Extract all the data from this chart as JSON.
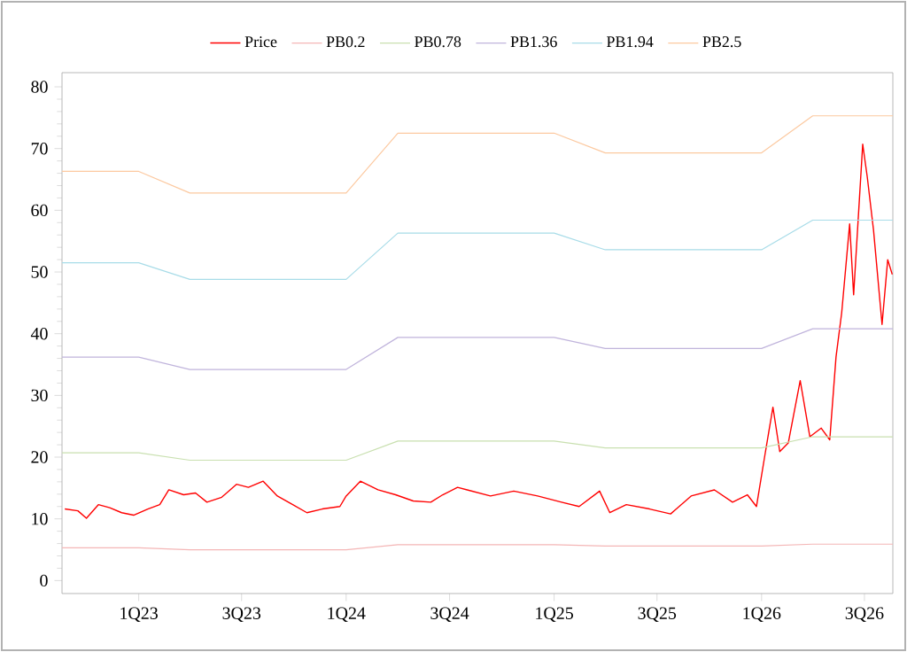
{
  "chart_data": {
    "type": "line",
    "legend": "top",
    "grid": false,
    "marker": "none",
    "line_style": "solid",
    "xlim": [
      "2022-08-19",
      "2026-08-20"
    ],
    "ylim": [
      -2.1,
      82.3
    ],
    "xticks": [
      {
        "value": "2023-01-01",
        "label": "1Q23"
      },
      {
        "value": "2023-07-01",
        "label": "3Q23"
      },
      {
        "value": "2024-01-01",
        "label": "1Q24"
      },
      {
        "value": "2024-07-01",
        "label": "3Q24"
      },
      {
        "value": "2025-01-01",
        "label": "1Q25"
      },
      {
        "value": "2025-07-01",
        "label": "3Q25"
      },
      {
        "value": "2026-01-01",
        "label": "1Q26"
      },
      {
        "value": "2026-07-01",
        "label": "3Q26"
      }
    ],
    "yticks": [
      0,
      10,
      20,
      30,
      40,
      50,
      60,
      70,
      80
    ],
    "series": [
      {
        "name": "Price",
        "color": "#ff0000",
        "x": [
          "2022-08-24",
          "2022-09-16",
          "2022-10-01",
          "2022-10-22",
          "2022-11-11",
          "2022-12-02",
          "2022-12-23",
          "2023-01-17",
          "2023-02-07",
          "2023-02-23",
          "2023-03-21",
          "2023-04-11",
          "2023-05-01",
          "2023-05-27",
          "2023-06-22",
          "2023-07-13",
          "2023-08-08",
          "2023-09-02",
          "2023-09-29",
          "2023-10-24",
          "2023-11-20",
          "2023-12-21",
          "2024-01-01",
          "2024-01-26",
          "2024-02-26",
          "2024-03-28",
          "2024-04-28",
          "2024-05-29",
          "2024-06-19",
          "2024-07-15",
          "2024-08-01",
          "2024-09-11",
          "2024-10-22",
          "2024-12-03",
          "2025-01-14",
          "2025-02-14",
          "2025-03-22",
          "2025-04-09",
          "2025-05-08",
          "2025-06-18",
          "2025-07-25",
          "2025-08-30",
          "2025-10-10",
          "2025-11-11",
          "2025-12-07",
          "2025-12-23",
          "2026-01-07",
          "2026-01-21",
          "2026-02-02",
          "2026-02-17",
          "2026-03-10",
          "2026-03-27",
          "2026-04-16",
          "2026-05-01",
          "2026-05-12",
          "2026-05-22",
          "2026-06-05",
          "2026-06-12",
          "2026-06-28",
          "2026-07-06",
          "2026-07-17",
          "2026-08-01",
          "2026-08-11",
          "2026-08-19"
        ],
        "values": [
          11.6,
          11.3,
          10.1,
          12.3,
          11.8,
          11.0,
          10.6,
          11.6,
          12.3,
          14.7,
          13.9,
          14.2,
          12.7,
          13.5,
          15.6,
          15.1,
          16.1,
          13.7,
          12.3,
          11.0,
          11.6,
          12.0,
          13.7,
          16.1,
          14.7,
          13.9,
          12.9,
          12.7,
          13.9,
          15.1,
          14.7,
          13.7,
          14.5,
          13.7,
          12.7,
          12.0,
          14.5,
          11.0,
          12.3,
          11.6,
          10.8,
          13.7,
          14.7,
          12.7,
          13.9,
          12.0,
          20.4,
          28.1,
          20.9,
          22.3,
          32.4,
          23.3,
          24.7,
          22.8,
          36.2,
          43.4,
          57.8,
          46.3,
          70.7,
          65.4,
          56.8,
          41.5,
          52.0,
          49.6
        ]
      },
      {
        "name": "PB0.2",
        "color": "#f4b6b6",
        "x": [
          "2022-08-19",
          "2023-01-01",
          "2023-04-01",
          "2024-01-01",
          "2024-04-01",
          "2025-01-01",
          "2025-04-01",
          "2026-01-01",
          "2026-04-01",
          "2026-08-20"
        ],
        "values": [
          5.3,
          5.3,
          5.0,
          5.0,
          5.8,
          5.8,
          5.6,
          5.6,
          5.9,
          5.9
        ]
      },
      {
        "name": "PB0.78",
        "color": "#c9e0b0",
        "x": [
          "2022-08-19",
          "2023-01-01",
          "2023-04-01",
          "2024-01-01",
          "2024-04-01",
          "2025-01-01",
          "2025-04-01",
          "2026-01-01",
          "2026-04-01",
          "2026-08-20"
        ],
        "values": [
          20.7,
          20.7,
          19.5,
          19.5,
          22.6,
          22.6,
          21.5,
          21.5,
          23.3,
          23.3
        ]
      },
      {
        "name": "PB1.36",
        "color": "#c0b4dc",
        "x": [
          "2022-08-19",
          "2023-01-01",
          "2023-04-01",
          "2024-01-01",
          "2024-04-01",
          "2025-01-01",
          "2025-04-01",
          "2026-01-01",
          "2026-04-01",
          "2026-08-20"
        ],
        "values": [
          36.2,
          36.2,
          34.2,
          34.2,
          39.4,
          39.4,
          37.6,
          37.6,
          40.8,
          40.8
        ]
      },
      {
        "name": "PB1.94",
        "color": "#a8dce8",
        "x": [
          "2022-08-19",
          "2023-01-01",
          "2023-04-01",
          "2024-01-01",
          "2024-04-01",
          "2025-01-01",
          "2025-04-01",
          "2026-01-01",
          "2026-04-01",
          "2026-08-20"
        ],
        "values": [
          51.5,
          51.5,
          48.8,
          48.8,
          56.3,
          56.3,
          53.6,
          53.6,
          58.4,
          58.4
        ]
      },
      {
        "name": "PB2.5",
        "color": "#fcc9a0",
        "x": [
          "2022-08-19",
          "2023-01-01",
          "2023-04-01",
          "2024-01-01",
          "2024-04-01",
          "2025-01-01",
          "2025-04-01",
          "2026-01-01",
          "2026-04-01",
          "2026-08-20"
        ],
        "values": [
          66.3,
          66.3,
          62.8,
          62.8,
          72.5,
          72.5,
          69.3,
          69.3,
          75.3,
          75.3
        ]
      }
    ]
  }
}
